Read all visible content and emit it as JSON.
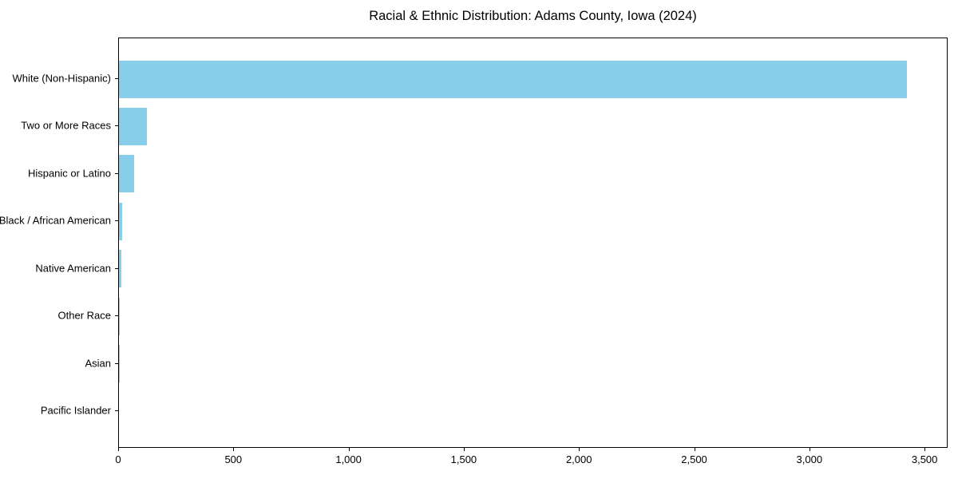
{
  "chart_data": {
    "type": "bar",
    "orientation": "horizontal",
    "title": "Racial & Ethnic Distribution: Adams County, Iowa (2024)",
    "xlabel": "",
    "ylabel": "",
    "categories": [
      "White (Non-Hispanic)",
      "Two or More Races",
      "Hispanic or Latino",
      "Black / African American",
      "Native American",
      "Other Race",
      "Asian",
      "Pacific Islander"
    ],
    "values": [
      3420,
      120,
      65,
      15,
      10,
      2,
      1,
      0
    ],
    "xlim": [
      0,
      3600
    ],
    "x_ticks": [
      {
        "value": 0,
        "label": "0"
      },
      {
        "value": 500,
        "label": "500"
      },
      {
        "value": 1000,
        "label": "1,000"
      },
      {
        "value": 1500,
        "label": "1,500"
      },
      {
        "value": 2000,
        "label": "2,000"
      },
      {
        "value": 2500,
        "label": "2,500"
      },
      {
        "value": 3000,
        "label": "3,000"
      },
      {
        "value": 3500,
        "label": "3,500"
      }
    ],
    "bar_color": "#87CEEB",
    "axis_color": "#000000",
    "background_color": "#ffffff",
    "grid": false,
    "legend": null
  }
}
